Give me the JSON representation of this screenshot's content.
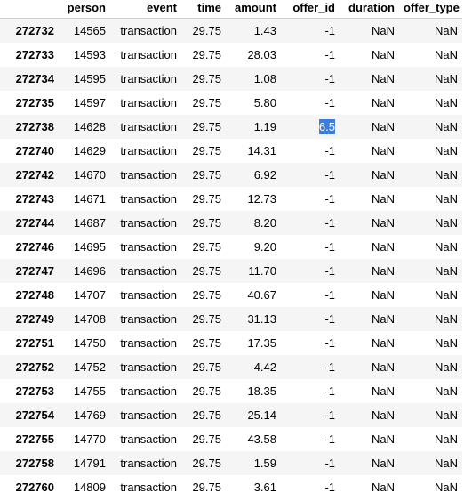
{
  "columns": {
    "index": "",
    "person": "person",
    "event": "event",
    "time": "time",
    "amount": "amount",
    "offer_id": "offer_id",
    "duration": "duration",
    "offer_type": "offer_type"
  },
  "highlight_color": "#3b7ddd",
  "rows": [
    {
      "idx": "272732",
      "person": "14565",
      "event": "transaction",
      "time": "29.75",
      "amount": "1.43",
      "offer_id": "-1",
      "duration": "NaN",
      "offer_type": "NaN"
    },
    {
      "idx": "272733",
      "person": "14593",
      "event": "transaction",
      "time": "29.75",
      "amount": "28.03",
      "offer_id": "-1",
      "duration": "NaN",
      "offer_type": "NaN"
    },
    {
      "idx": "272734",
      "person": "14595",
      "event": "transaction",
      "time": "29.75",
      "amount": "1.08",
      "offer_id": "-1",
      "duration": "NaN",
      "offer_type": "NaN"
    },
    {
      "idx": "272735",
      "person": "14597",
      "event": "transaction",
      "time": "29.75",
      "amount": "5.80",
      "offer_id": "-1",
      "duration": "NaN",
      "offer_type": "NaN"
    },
    {
      "idx": "272738",
      "person": "14628",
      "event": "transaction",
      "time": "29.75",
      "amount": "1.19",
      "offer_id": "6.5",
      "duration": "NaN",
      "offer_type": "NaN",
      "highlight": true
    },
    {
      "idx": "272740",
      "person": "14629",
      "event": "transaction",
      "time": "29.75",
      "amount": "14.31",
      "offer_id": "-1",
      "duration": "NaN",
      "offer_type": "NaN"
    },
    {
      "idx": "272742",
      "person": "14670",
      "event": "transaction",
      "time": "29.75",
      "amount": "6.92",
      "offer_id": "-1",
      "duration": "NaN",
      "offer_type": "NaN"
    },
    {
      "idx": "272743",
      "person": "14671",
      "event": "transaction",
      "time": "29.75",
      "amount": "12.73",
      "offer_id": "-1",
      "duration": "NaN",
      "offer_type": "NaN"
    },
    {
      "idx": "272744",
      "person": "14687",
      "event": "transaction",
      "time": "29.75",
      "amount": "8.20",
      "offer_id": "-1",
      "duration": "NaN",
      "offer_type": "NaN"
    },
    {
      "idx": "272746",
      "person": "14695",
      "event": "transaction",
      "time": "29.75",
      "amount": "9.20",
      "offer_id": "-1",
      "duration": "NaN",
      "offer_type": "NaN"
    },
    {
      "idx": "272747",
      "person": "14696",
      "event": "transaction",
      "time": "29.75",
      "amount": "11.70",
      "offer_id": "-1",
      "duration": "NaN",
      "offer_type": "NaN"
    },
    {
      "idx": "272748",
      "person": "14707",
      "event": "transaction",
      "time": "29.75",
      "amount": "40.67",
      "offer_id": "-1",
      "duration": "NaN",
      "offer_type": "NaN"
    },
    {
      "idx": "272749",
      "person": "14708",
      "event": "transaction",
      "time": "29.75",
      "amount": "31.13",
      "offer_id": "-1",
      "duration": "NaN",
      "offer_type": "NaN"
    },
    {
      "idx": "272751",
      "person": "14750",
      "event": "transaction",
      "time": "29.75",
      "amount": "17.35",
      "offer_id": "-1",
      "duration": "NaN",
      "offer_type": "NaN"
    },
    {
      "idx": "272752",
      "person": "14752",
      "event": "transaction",
      "time": "29.75",
      "amount": "4.42",
      "offer_id": "-1",
      "duration": "NaN",
      "offer_type": "NaN"
    },
    {
      "idx": "272753",
      "person": "14755",
      "event": "transaction",
      "time": "29.75",
      "amount": "18.35",
      "offer_id": "-1",
      "duration": "NaN",
      "offer_type": "NaN"
    },
    {
      "idx": "272754",
      "person": "14769",
      "event": "transaction",
      "time": "29.75",
      "amount": "25.14",
      "offer_id": "-1",
      "duration": "NaN",
      "offer_type": "NaN"
    },
    {
      "idx": "272755",
      "person": "14770",
      "event": "transaction",
      "time": "29.75",
      "amount": "43.58",
      "offer_id": "-1",
      "duration": "NaN",
      "offer_type": "NaN"
    },
    {
      "idx": "272758",
      "person": "14791",
      "event": "transaction",
      "time": "29.75",
      "amount": "1.59",
      "offer_id": "-1",
      "duration": "NaN",
      "offer_type": "NaN"
    },
    {
      "idx": "272760",
      "person": "14809",
      "event": "transaction",
      "time": "29.75",
      "amount": "3.61",
      "offer_id": "-1",
      "duration": "NaN",
      "offer_type": "NaN"
    }
  ]
}
